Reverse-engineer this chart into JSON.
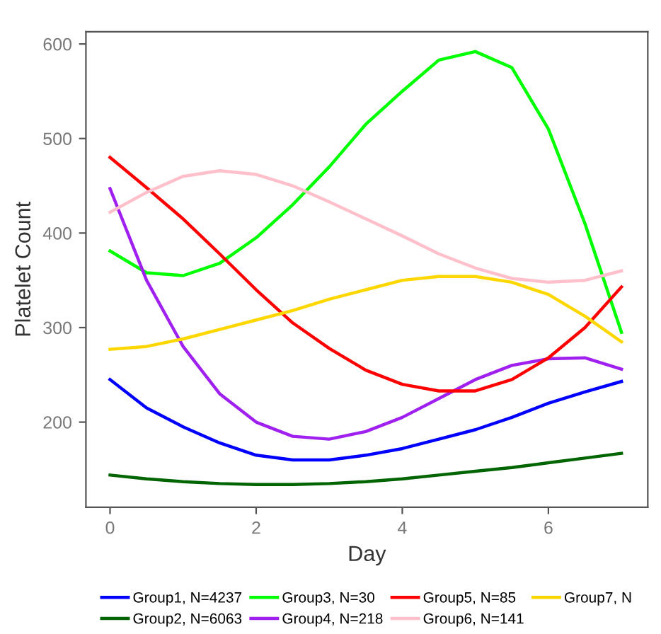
{
  "chart_data": {
    "type": "line",
    "xlabel": "Day",
    "ylabel": "Platelet Count",
    "x": [
      0,
      0.5,
      1,
      1.5,
      2,
      2.5,
      3,
      3.5,
      4,
      4.5,
      5,
      5.5,
      6,
      6.5,
      7
    ],
    "xlim": [
      -0.33,
      7.36
    ],
    "xticks": [
      0,
      2,
      4,
      6
    ],
    "ylim": [
      110,
      613
    ],
    "yticks": [
      200,
      300,
      400,
      500,
      600
    ],
    "grid": false,
    "legend": "bottom",
    "marker": "none",
    "line_style": "solid",
    "series": [
      {
        "name": "Group1, N=4237",
        "color": "#0000ff",
        "values": [
          245,
          215,
          195,
          178,
          165,
          160,
          160,
          165,
          172,
          182,
          192,
          205,
          220,
          232,
          243
        ]
      },
      {
        "name": "Group2, N=6063",
        "color": "#006400",
        "values": [
          144,
          140,
          137,
          135,
          134,
          134,
          135,
          137,
          140,
          144,
          148,
          152,
          157,
          162,
          167
        ]
      },
      {
        "name": "Group3, N=30",
        "color": "#00ff00",
        "values": [
          381,
          358,
          355,
          368,
          395,
          430,
          470,
          515,
          550,
          583,
          592,
          575,
          510,
          410,
          295
        ]
      },
      {
        "name": "Group4, N=218",
        "color": "#a020f0",
        "values": [
          447,
          350,
          280,
          230,
          200,
          185,
          182,
          190,
          205,
          225,
          245,
          260,
          267,
          268,
          256
        ]
      },
      {
        "name": "Group5, N=85",
        "color": "#ff0000",
        "values": [
          480,
          448,
          415,
          378,
          340,
          305,
          278,
          255,
          240,
          233,
          233,
          245,
          268,
          300,
          343
        ]
      },
      {
        "name": "Group6, N=141",
        "color": "#ffc0cb",
        "values": [
          422,
          443,
          460,
          466,
          462,
          450,
          433,
          415,
          397,
          378,
          363,
          352,
          348,
          350,
          360
        ]
      },
      {
        "name": "Group7, N",
        "color": "#ffd700",
        "values": [
          277,
          280,
          288,
          298,
          308,
          318,
          330,
          340,
          350,
          354,
          354,
          348,
          335,
          312,
          285
        ]
      }
    ]
  }
}
